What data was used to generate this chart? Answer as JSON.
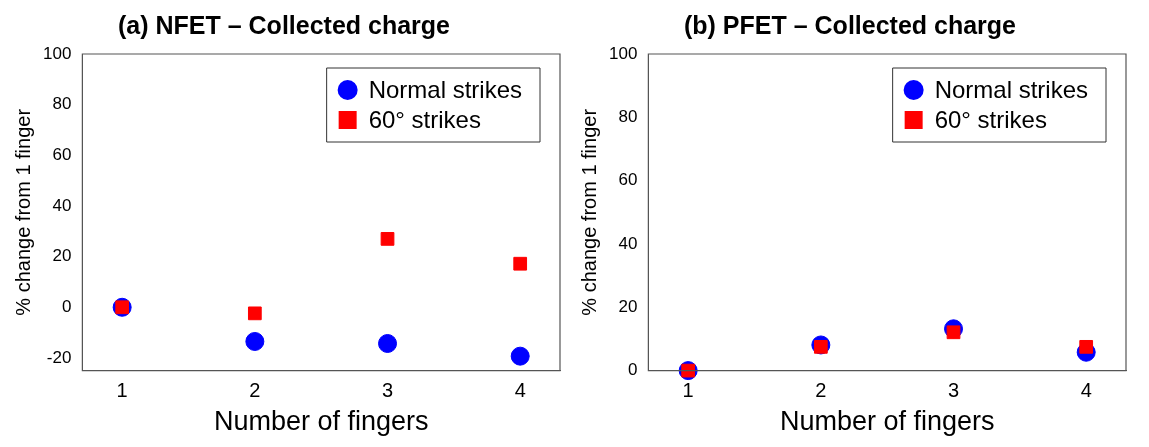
{
  "chart_data": [
    {
      "type": "scatter",
      "title": "(a) NFET – Collected charge",
      "xlabel": "Number of fingers",
      "ylabel": "% change from 1 finger",
      "x": [
        1,
        2,
        3,
        4
      ],
      "xlim": [
        0.7,
        4.3
      ],
      "xticks": [
        1,
        2,
        3,
        4
      ],
      "ylim": [
        -25,
        100
      ],
      "yticks": [
        -20,
        0,
        20,
        40,
        60,
        80,
        100
      ],
      "grid": false,
      "legend": "top right",
      "series": [
        {
          "name": "Normal strikes",
          "color": "#0000ff",
          "marker": "circle",
          "values": [
            0,
            -13.5,
            -14.3,
            -19.3
          ]
        },
        {
          "name": "60° strikes",
          "color": "#ff0000",
          "marker": "square",
          "values": [
            0,
            -2.4,
            27,
            17.2
          ]
        }
      ]
    },
    {
      "type": "scatter",
      "title": "(b) PFET – Collected charge",
      "xlabel": "Number of fingers",
      "ylabel": "% change from 1 finger",
      "x": [
        1,
        2,
        3,
        4
      ],
      "xlim": [
        0.7,
        4.3
      ],
      "xticks": [
        1,
        2,
        3,
        4
      ],
      "ylim": [
        0,
        100
      ],
      "yticks": [
        0,
        20,
        40,
        60,
        80,
        100
      ],
      "grid": false,
      "legend": "top right",
      "series": [
        {
          "name": "Normal strikes",
          "color": "#0000ff",
          "marker": "circle",
          "values": [
            0,
            8.1,
            13.2,
            5.8
          ]
        },
        {
          "name": "60° strikes",
          "color": "#ff0000",
          "marker": "square",
          "values": [
            0,
            7.5,
            12.1,
            7.5
          ]
        }
      ]
    }
  ]
}
